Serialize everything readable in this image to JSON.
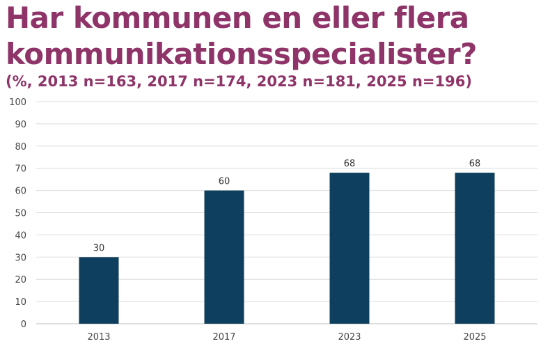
{
  "chart_data": {
    "type": "bar",
    "title": "Har kommunen en eller flera kommunikationsspecialister?",
    "subtitle": "(%, 2013 n=163, 2017 n=174, 2023 n=181, 2025 n=196)",
    "categories": [
      "2013",
      "2017",
      "2023",
      "2025"
    ],
    "values": [
      30,
      60,
      68,
      68
    ],
    "data_labels": [
      "30",
      "60",
      "68",
      "68"
    ],
    "xlabel": "",
    "ylabel": "",
    "ylim": [
      0,
      100
    ],
    "yticks": [
      "0",
      "10",
      "20",
      "30",
      "40",
      "50",
      "60",
      "70",
      "80",
      "90",
      "100"
    ],
    "grid": true,
    "legend": "none",
    "bar_color": "#0f3f5e",
    "title_color": "#8e3468"
  }
}
